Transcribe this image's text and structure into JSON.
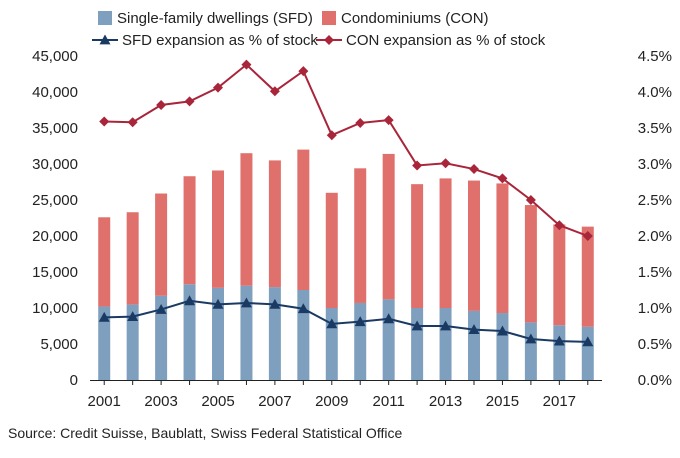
{
  "chart_data": {
    "type": "bar",
    "stacked": true,
    "categories": [
      "2001",
      "2002",
      "2003",
      "2004",
      "2005",
      "2006",
      "2007",
      "2008",
      "2009",
      "2010",
      "2011",
      "2012",
      "2013",
      "2014",
      "2015",
      "2016",
      "2017",
      "2018"
    ],
    "x_tick_labels": [
      "2001",
      "2003",
      "2005",
      "2007",
      "2009",
      "2011",
      "2013",
      "2015",
      "2017"
    ],
    "series": [
      {
        "name": "Single-family dwellings (SFD)",
        "kind": "bar",
        "axis": "left",
        "color": "#7f9fbf",
        "values": [
          10200,
          10500,
          11700,
          13300,
          12800,
          13100,
          12900,
          12500,
          10000,
          10700,
          11200,
          10000,
          10000,
          9600,
          9300,
          8000,
          7600,
          7400
        ]
      },
      {
        "name": "Condominiums (CON)",
        "kind": "bar",
        "axis": "left",
        "color": "#e0706c",
        "values": [
          12400,
          12800,
          14200,
          15000,
          16300,
          18400,
          17600,
          19500,
          16000,
          18700,
          20200,
          17200,
          18000,
          18100,
          18000,
          16300,
          14000,
          13900
        ]
      },
      {
        "name": "SFD expansion as % of stock",
        "kind": "line",
        "axis": "right",
        "color": "#1b3a63",
        "marker": "triangle",
        "values": [
          0.87,
          0.88,
          0.98,
          1.1,
          1.05,
          1.07,
          1.05,
          0.99,
          0.78,
          0.81,
          0.85,
          0.75,
          0.75,
          0.7,
          0.68,
          0.57,
          0.54,
          0.53
        ]
      },
      {
        "name": "CON expansion as % of stock",
        "kind": "line",
        "axis": "right",
        "color": "#a8253a",
        "marker": "diamond",
        "values": [
          3.59,
          3.58,
          3.82,
          3.87,
          4.06,
          4.38,
          4.01,
          4.29,
          3.4,
          3.57,
          3.61,
          2.98,
          3.01,
          2.93,
          2.8,
          2.5,
          2.15,
          2.0
        ]
      }
    ],
    "y_left": {
      "min": 0,
      "max": 45000,
      "tick_labels": [
        "0",
        "5,000",
        "10,000",
        "15,000",
        "20,000",
        "25,000",
        "30,000",
        "35,000",
        "40,000",
        "45,000"
      ]
    },
    "y_right": {
      "min": 0,
      "max": 4.5,
      "tick_labels": [
        "0.0%",
        "0.5%",
        "1.0%",
        "1.5%",
        "2.0%",
        "2.5%",
        "3.0%",
        "3.5%",
        "4.0%",
        "4.5%"
      ]
    },
    "legend_position": "top",
    "grid": false,
    "source": "Source: Credit Suisse, Baublatt, Swiss Federal Statistical Office"
  }
}
